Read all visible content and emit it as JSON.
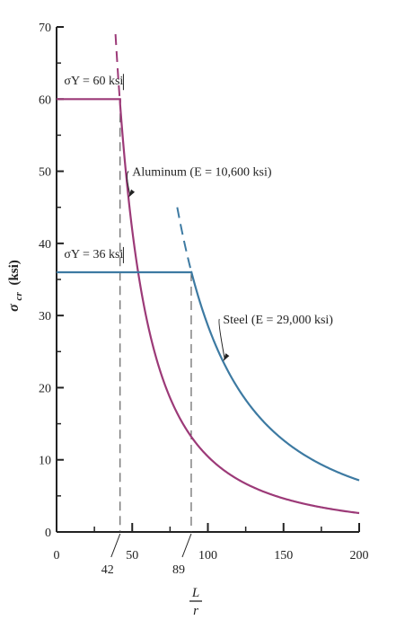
{
  "chart_data": {
    "type": "line",
    "title": "",
    "xlabel_numerator": "L",
    "xlabel_denominator": "r",
    "ylabel_symbol": "σ",
    "ylabel_subscript": "cr",
    "ylabel_unit": "(ksi)",
    "xlim": [
      0,
      200
    ],
    "ylim": [
      0,
      70
    ],
    "x_ticks": [
      0,
      50,
      100,
      150,
      200
    ],
    "y_ticks": [
      0,
      10,
      20,
      30,
      40,
      50,
      60,
      70
    ],
    "x_special_ticks": [
      42,
      89
    ],
    "grid": false,
    "colors": {
      "aluminum": "#9c3a78",
      "steel": "#3d7aa2"
    },
    "series": [
      {
        "name": "Aluminum (E = 10,600 ksi)",
        "E": 10600,
        "yield": 60,
        "transition": 42,
        "label_anchor": [
          50,
          50
        ]
      },
      {
        "name": "Steel (E = 29,000 ksi)",
        "E": 29000,
        "yield": 36,
        "transition": 89,
        "label_anchor": [
          110,
          29.5
        ]
      }
    ],
    "annotations": [
      {
        "text": "σY = 60 ksi",
        "x": 5,
        "y": 62
      },
      {
        "text": "σY = 36 ksi",
        "x": 5,
        "y": 38
      }
    ]
  }
}
